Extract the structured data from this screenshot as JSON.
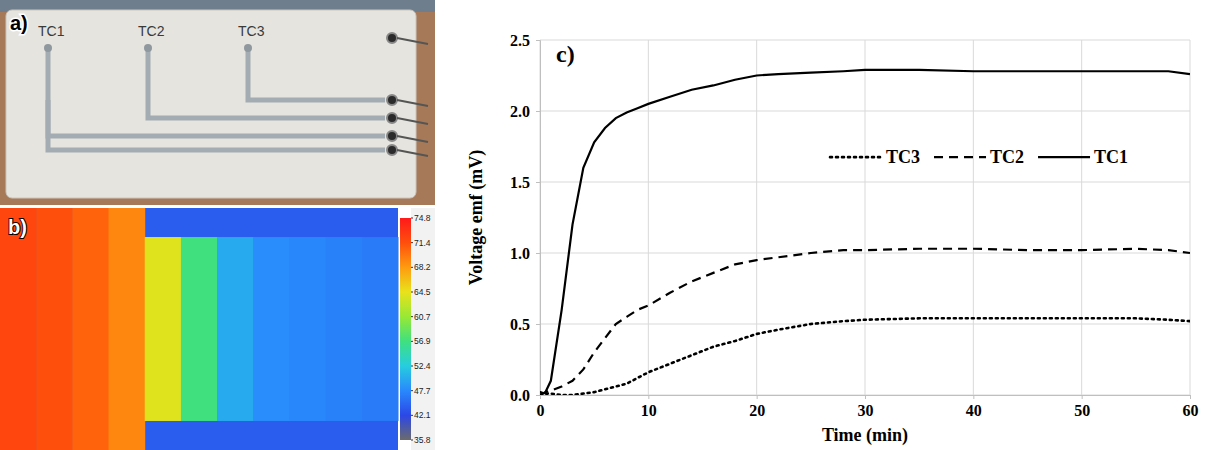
{
  "chart_data": [
    {
      "type": "photo",
      "label": "a)",
      "annotations": [
        "TC1",
        "TC2",
        "TC3"
      ]
    },
    {
      "type": "heatmap",
      "label": "b)",
      "values": [
        72,
        71.4,
        70.5,
        69,
        64,
        57,
        50,
        48,
        47.5,
        47,
        46.5
      ],
      "background": 44,
      "colorbar_range": [
        35.8,
        74.8
      ],
      "colorbar_ticks": [
        35.8,
        42.1,
        47.7,
        52.4,
        56.9,
        60.7,
        64.5,
        68.2,
        71.4,
        74.8
      ]
    },
    {
      "type": "line",
      "label": "c)",
      "x_label": "Time (min)",
      "y_label": "Voltage emf (mV)",
      "x": [
        0,
        0.5,
        1,
        2,
        3,
        4,
        5,
        6,
        7,
        8,
        9,
        10,
        12,
        14,
        16,
        18,
        20,
        22,
        25,
        28,
        30,
        35,
        40,
        45,
        50,
        55,
        58,
        60
      ],
      "series": [
        {
          "name": "TC3",
          "color": "#000000",
          "line_style": "dotted",
          "values": [
            0.02,
            0.01,
            0.01,
            0,
            0,
            0.01,
            0.02,
            0.04,
            0.06,
            0.08,
            0.12,
            0.16,
            0.22,
            0.28,
            0.34,
            0.38,
            0.43,
            0.46,
            0.5,
            0.52,
            0.53,
            0.54,
            0.54,
            0.54,
            0.54,
            0.54,
            0.53,
            0.52
          ]
        },
        {
          "name": "TC2",
          "color": "#000000",
          "line_style": "dashed",
          "values": [
            0,
            0.02,
            0.03,
            0.06,
            0.1,
            0.18,
            0.3,
            0.4,
            0.5,
            0.55,
            0.6,
            0.63,
            0.72,
            0.8,
            0.86,
            0.92,
            0.95,
            0.97,
            1.0,
            1.02,
            1.02,
            1.03,
            1.03,
            1.02,
            1.02,
            1.03,
            1.02,
            1.0
          ]
        },
        {
          "name": "TC1",
          "color": "#000000",
          "line_style": "solid",
          "values": [
            0,
            0.02,
            0.1,
            0.6,
            1.2,
            1.6,
            1.78,
            1.88,
            1.95,
            1.99,
            2.02,
            2.05,
            2.1,
            2.15,
            2.18,
            2.22,
            2.25,
            2.26,
            2.27,
            2.28,
            2.29,
            2.29,
            2.28,
            2.28,
            2.28,
            2.28,
            2.28,
            2.26
          ]
        }
      ],
      "xlim": [
        0,
        60
      ],
      "xticks": [
        0,
        10,
        20,
        30,
        40,
        50,
        60
      ],
      "ylim": [
        0,
        2.5
      ],
      "yticks": [
        {
          "value": 0,
          "label": "0.0"
        },
        {
          "value": 0.5,
          "label": "0.5"
        },
        {
          "value": 1,
          "label": "1.0"
        },
        {
          "value": 1.5,
          "label": "1.5"
        },
        {
          "value": 2,
          "label": "2.0"
        },
        {
          "value": 2.5,
          "label": "2.5"
        }
      ],
      "grid": true,
      "legend": "upper right"
    }
  ]
}
